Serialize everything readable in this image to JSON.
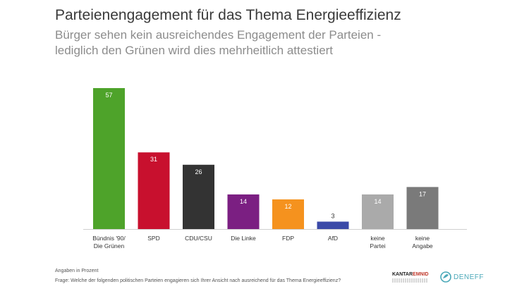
{
  "header": {
    "title": "Parteienengagement für das Thema Energieeffizienz",
    "subtitle_line1": "Bürger sehen kein ausreichendes Engagement der Parteien -",
    "subtitle_line2": "lediglich den Grünen wird dies mehrheitlich attestiert"
  },
  "footer": {
    "note": "Angaben in Prozent",
    "question": "Frage: Welche der folgenden politischen Parteien engagieren sich Ihrer Ansicht nach ausreichend für das Thema Energieeffizienz?",
    "logo_kantar_part1": "KANTAR",
    "logo_kantar_part2": "EMNID",
    "logo_deneff": "DENEFF"
  },
  "chart_data": {
    "type": "bar",
    "title": "Parteienengagement für das Thema Energieeffizienz",
    "categories": [
      [
        "Bündnis '90/",
        "Die Grünen"
      ],
      [
        "SPD"
      ],
      [
        "CDU/CSU"
      ],
      [
        "Die Linke"
      ],
      [
        "FDP"
      ],
      [
        "AfD"
      ],
      [
        "keine",
        "Partei"
      ],
      [
        "keine",
        "Angabe"
      ]
    ],
    "values": [
      57,
      31,
      26,
      14,
      12,
      3,
      14,
      17
    ],
    "colors": [
      "#4ea32a",
      "#c8102e",
      "#333333",
      "#7b1f82",
      "#f5921e",
      "#3b4aa8",
      "#aaaaaa",
      "#7a7a7a"
    ],
    "xlabel": "",
    "ylabel": "",
    "ylim": [
      0,
      57
    ],
    "value_labels": true,
    "grid": false,
    "legend": "none"
  }
}
